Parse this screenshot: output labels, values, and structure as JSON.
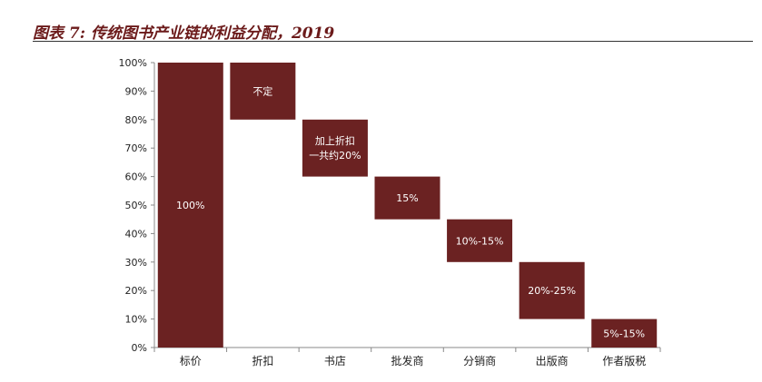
{
  "header": {
    "title": "图表 7: 传统图书产业链的利益分配，2019"
  },
  "chart_data": {
    "type": "bar",
    "subtype": "waterfall",
    "title": "图表 7: 传统图书产业链的利益分配，2019",
    "xlabel": "",
    "ylabel": "",
    "ylim": [
      0,
      100
    ],
    "yticks": [
      "0%",
      "10%",
      "20%",
      "30%",
      "40%",
      "50%",
      "60%",
      "70%",
      "80%",
      "90%",
      "100%"
    ],
    "categories": [
      "标价",
      "折扣",
      "书店",
      "批发商",
      "分销商",
      "出版商",
      "作者版税"
    ],
    "bars": [
      {
        "category": "标价",
        "bottom": 0,
        "top": 100,
        "label": [
          "100%"
        ]
      },
      {
        "category": "折扣",
        "bottom": 80,
        "top": 100,
        "label": [
          "不定"
        ]
      },
      {
        "category": "书店",
        "bottom": 60,
        "top": 80,
        "label": [
          "加上折扣",
          "一共约20%"
        ]
      },
      {
        "category": "批发商",
        "bottom": 45,
        "top": 60,
        "label": [
          "15%"
        ]
      },
      {
        "category": "分销商",
        "bottom": 30,
        "top": 45,
        "label": [
          "10%-15%"
        ]
      },
      {
        "category": "出版商",
        "bottom": 10,
        "top": 30,
        "label": [
          "20%-25%"
        ]
      },
      {
        "category": "作者版税",
        "bottom": 0,
        "top": 10,
        "label": [
          "5%-15%"
        ]
      }
    ],
    "colors": {
      "bar": "#6b2222",
      "axis": "#888888"
    },
    "grid": false,
    "legend": "none"
  }
}
